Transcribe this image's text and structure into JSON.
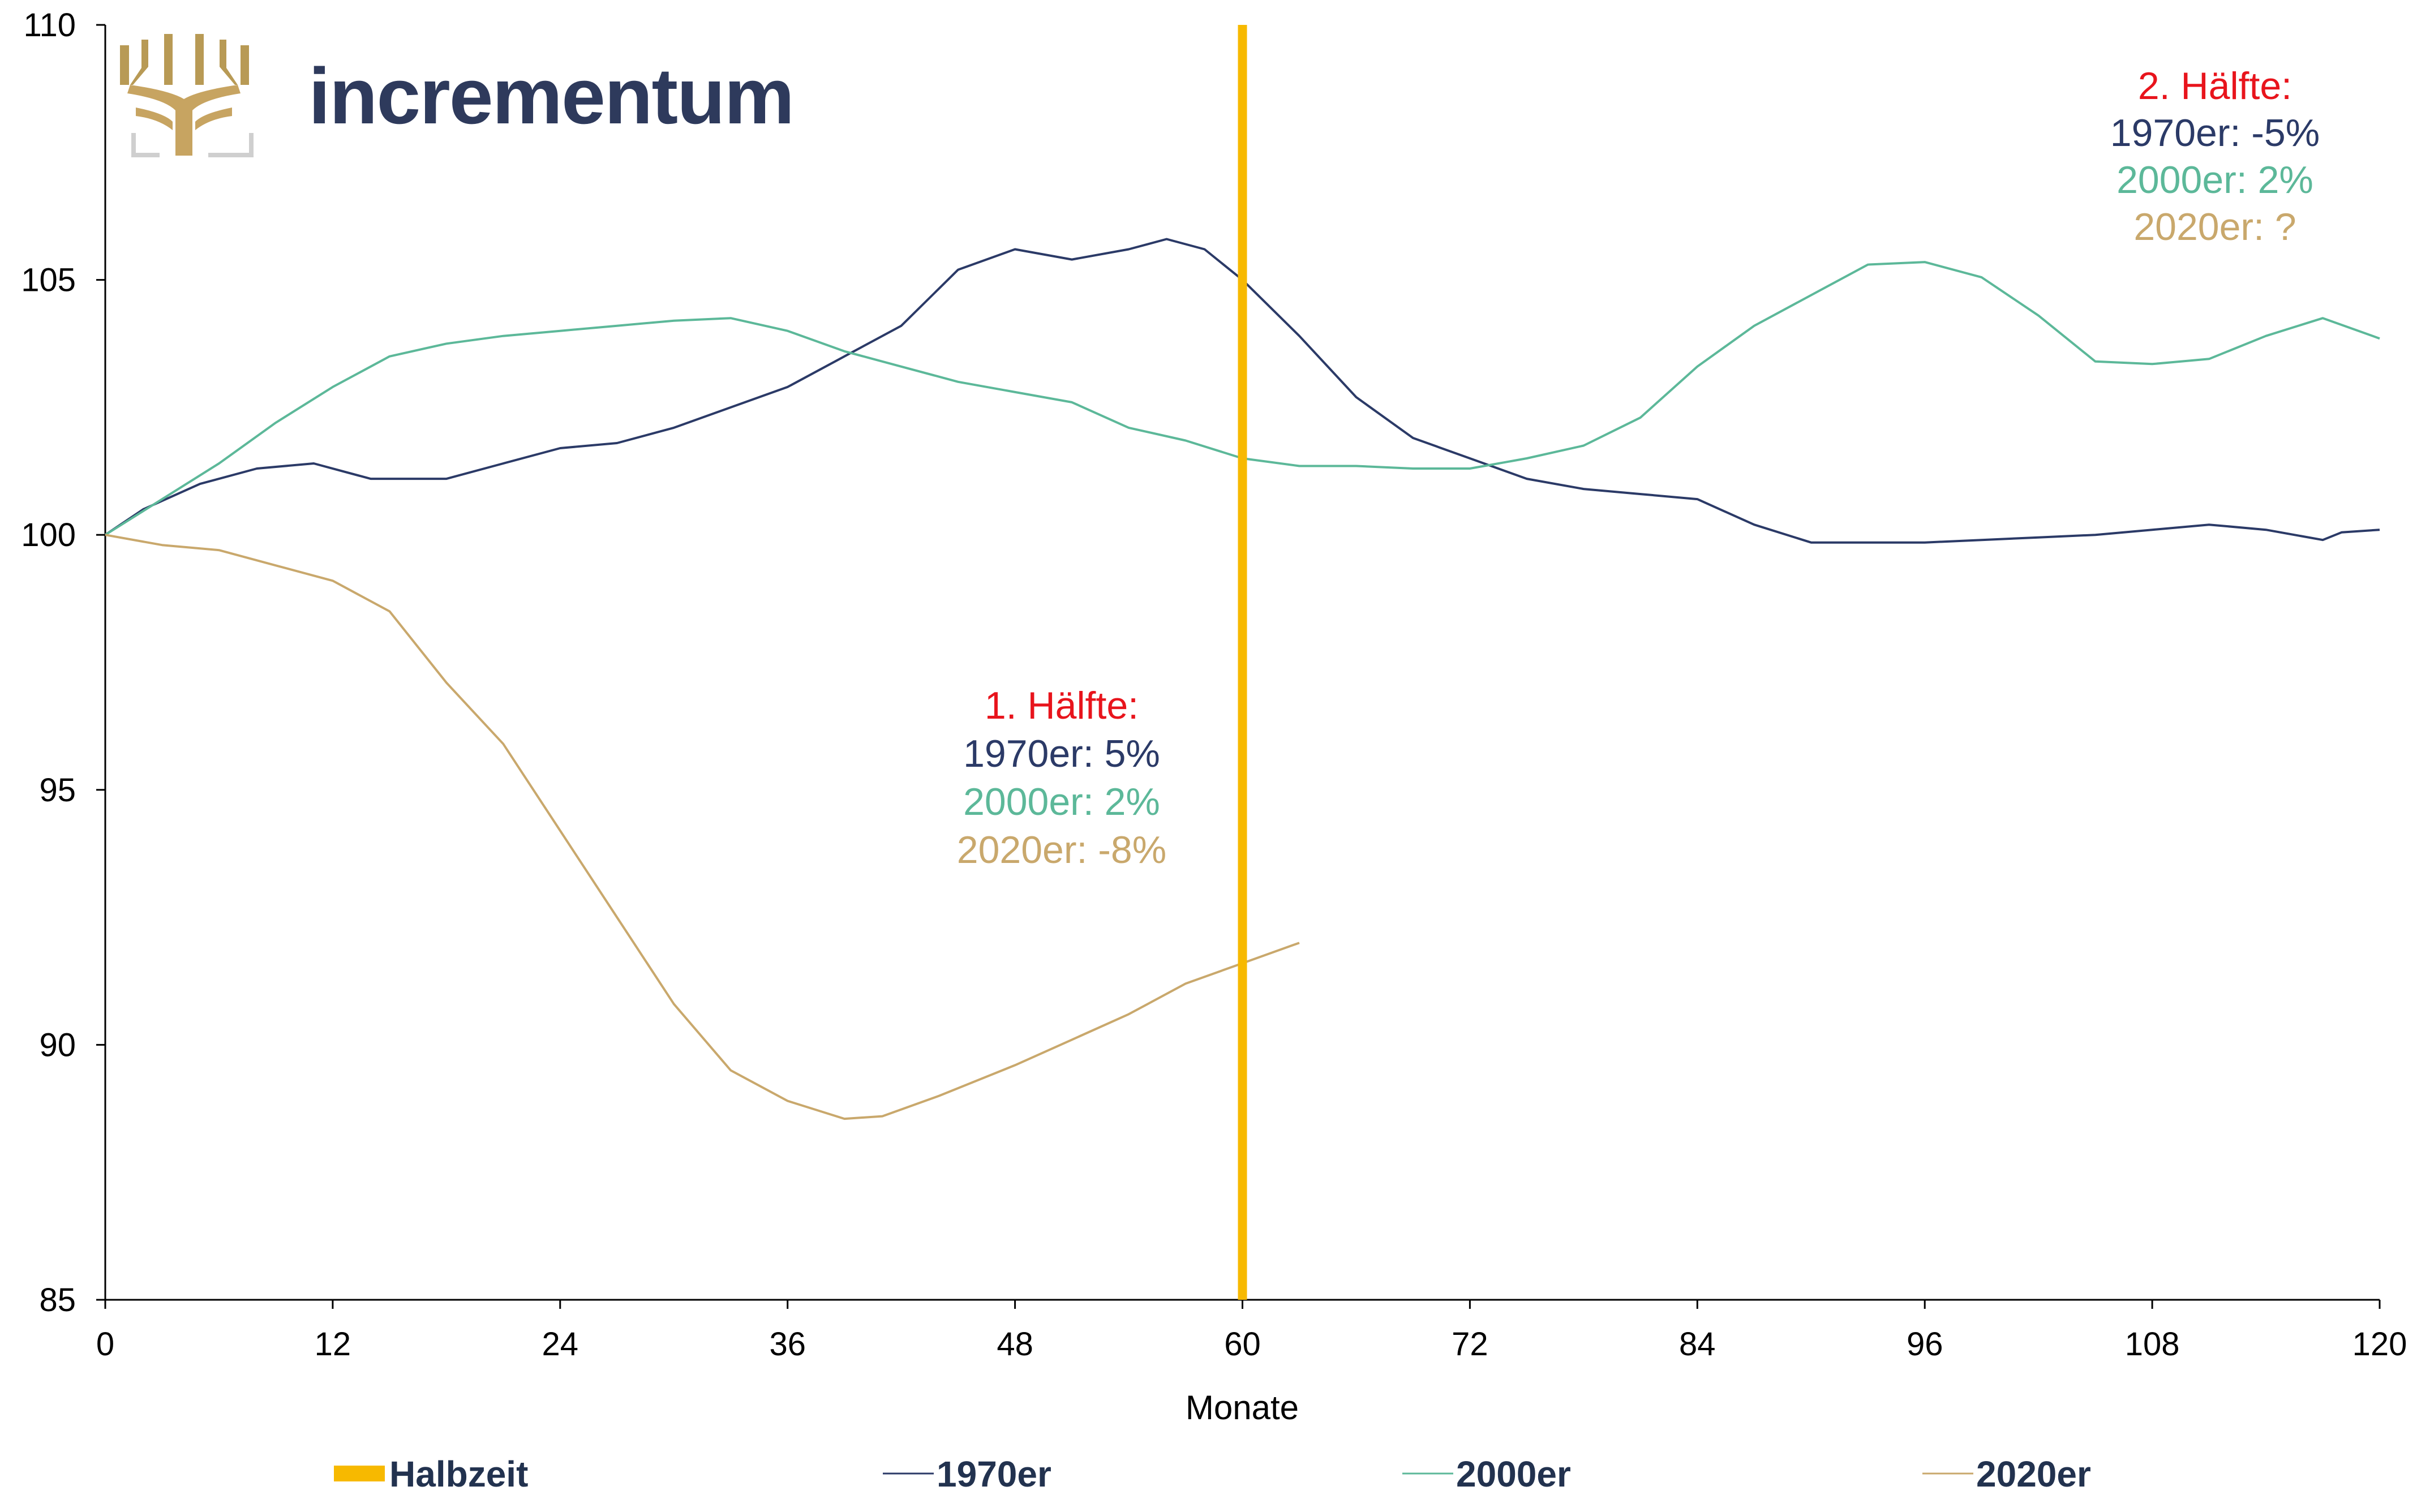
{
  "logo": {
    "text": "incrementum"
  },
  "colors": {
    "halbzeit": "#f7b900",
    "s1970": "#2b3a67",
    "s2000": "#5cb899",
    "s2020": "#c9a86c",
    "half_title": "#e8141c",
    "axis": "#000000"
  },
  "chart_data": {
    "type": "line",
    "xlabel": "Monate",
    "ylabel": "",
    "xlim": [
      0,
      120
    ],
    "ylim": [
      85,
      110
    ],
    "xticks": [
      0,
      12,
      24,
      36,
      48,
      60,
      72,
      84,
      96,
      108,
      120
    ],
    "yticks": [
      85,
      90,
      95,
      100,
      105,
      110
    ],
    "grid": false,
    "legend_position": "bottom",
    "vline": {
      "name": "Halbzeit",
      "x": 60
    },
    "series": [
      {
        "name": "1970er",
        "x": [
          0,
          2,
          5,
          8,
          11,
          14,
          18,
          21,
          24,
          27,
          30,
          33,
          36,
          39,
          42,
          45,
          48,
          51,
          54,
          56,
          58,
          60,
          63,
          66,
          69,
          72,
          75,
          78,
          81,
          84,
          87,
          90,
          93,
          96,
          99,
          102,
          105,
          108,
          111,
          114,
          117,
          118,
          120
        ],
        "values": [
          100,
          100.5,
          101,
          101.3,
          101.4,
          101.1,
          101.1,
          101.4,
          101.7,
          101.8,
          102.1,
          102.5,
          102.9,
          103.5,
          104.1,
          105.2,
          105.6,
          105.4,
          105.6,
          105.8,
          105.6,
          105,
          103.9,
          102.7,
          101.9,
          101.5,
          101.1,
          100.9,
          100.8,
          100.7,
          100.2,
          99.85,
          99.85,
          99.85,
          99.9,
          99.95,
          100,
          100.1,
          100.2,
          100.1,
          99.9,
          100.05,
          100.1
        ]
      },
      {
        "name": "2000er",
        "x": [
          0,
          3,
          6,
          9,
          12,
          15,
          18,
          21,
          24,
          27,
          30,
          33,
          36,
          39,
          42,
          45,
          48,
          51,
          54,
          57,
          60,
          63,
          66,
          69,
          72,
          75,
          78,
          81,
          84,
          87,
          90,
          93,
          96,
          99,
          102,
          105,
          108,
          111,
          114,
          117,
          120
        ],
        "values": [
          100,
          100.7,
          101.4,
          102.2,
          102.9,
          103.5,
          103.75,
          103.9,
          104,
          104.1,
          104.2,
          104.25,
          104,
          103.6,
          103.3,
          103,
          102.8,
          102.6,
          102.1,
          101.85,
          101.5,
          101.35,
          101.35,
          101.3,
          101.3,
          101.5,
          101.75,
          102.3,
          103.3,
          104.1,
          104.7,
          105.3,
          105.35,
          105.05,
          104.3,
          103.4,
          103.35,
          103.45,
          103.9,
          104.25,
          103.85
        ]
      },
      {
        "name": "2020er",
        "x": [
          0,
          3,
          6,
          9,
          12,
          15,
          18,
          21,
          24,
          27,
          30,
          33,
          36,
          39,
          41,
          44,
          48,
          51,
          54,
          57,
          60,
          63
        ],
        "values": [
          100,
          99.8,
          99.7,
          99.4,
          99.1,
          98.5,
          97.1,
          95.9,
          94.2,
          92.5,
          90.8,
          89.5,
          88.9,
          88.55,
          88.6,
          89.0,
          89.6,
          90.1,
          90.6,
          91.2,
          91.6,
          92.0
        ]
      }
    ],
    "annotations": [
      {
        "title": "1. Hälfte:",
        "lines": [
          "1970er: 5%",
          "2000er: 2%",
          "2020er: -8%"
        ]
      },
      {
        "title": "2. Hälfte:",
        "lines": [
          "1970er: -5%",
          "2000er: 2%",
          "2020er: ?"
        ]
      }
    ]
  }
}
